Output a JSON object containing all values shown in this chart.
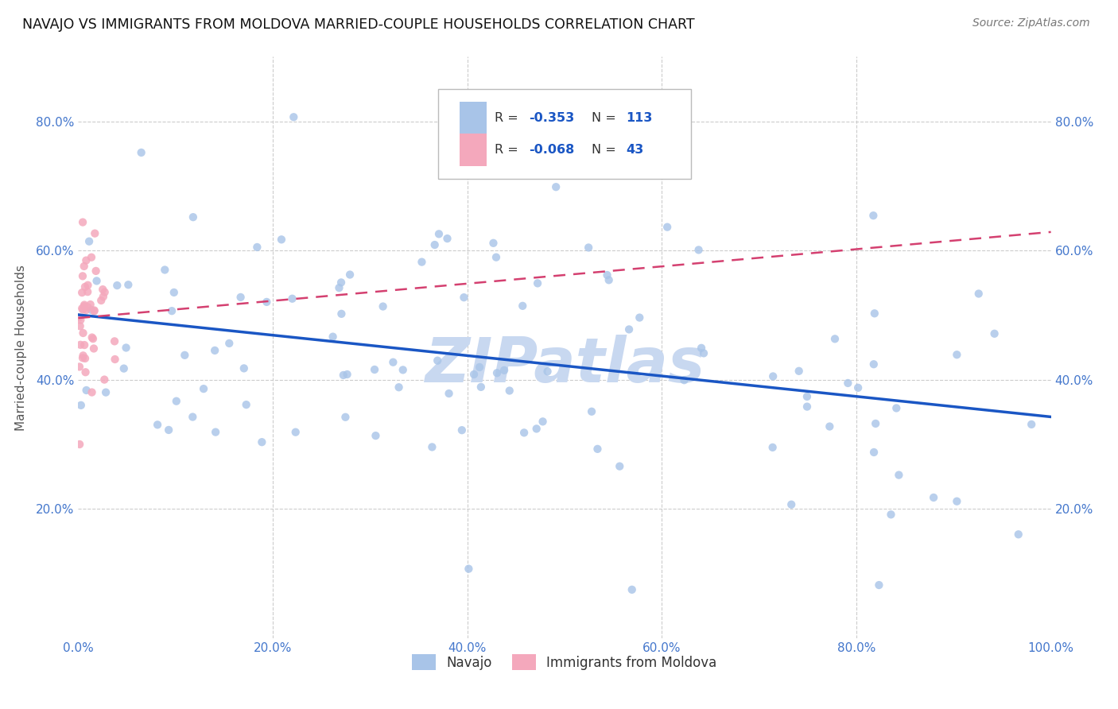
{
  "title": "NAVAJO VS IMMIGRANTS FROM MOLDOVA MARRIED-COUPLE HOUSEHOLDS CORRELATION CHART",
  "source": "Source: ZipAtlas.com",
  "xlabel_label": "Navajo",
  "xlabel2_label": "Immigrants from Moldova",
  "ylabel": "Married-couple Households",
  "xlim": [
    0,
    1
  ],
  "ylim": [
    0,
    0.9
  ],
  "xticks": [
    0,
    0.2,
    0.4,
    0.6,
    0.8,
    1.0
  ],
  "yticks": [
    0.0,
    0.2,
    0.4,
    0.6,
    0.8
  ],
  "xticklabels": [
    "0.0%",
    "20.0%",
    "40.0%",
    "60.0%",
    "80.0%",
    "100.0%"
  ],
  "yticklabels": [
    "",
    "20.0%",
    "40.0%",
    "60.0%",
    "80.0%"
  ],
  "navajo_R": -0.353,
  "navajo_N": 113,
  "moldova_R": -0.068,
  "moldova_N": 43,
  "navajo_color": "#a8c4e8",
  "moldova_color": "#f4a8bc",
  "navajo_line_color": "#1a56c4",
  "moldova_line_color": "#d44070",
  "title_fontsize": 13,
  "watermark_text": "ZIPatlas",
  "watermark_color": "#c8d8f0",
  "background_color": "#ffffff",
  "grid_color": "#cccccc"
}
